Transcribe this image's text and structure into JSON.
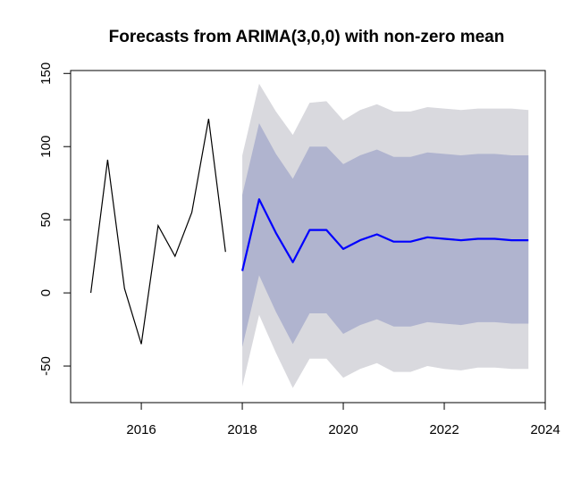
{
  "chart_data": {
    "type": "line",
    "title": "Forecasts from ARIMA(3,0,0) with non-zero mean",
    "xlabel": "",
    "ylabel": "",
    "xlim": [
      2014.6,
      2024.0
    ],
    "ylim": [
      -75,
      152
    ],
    "x_ticks": [
      2016,
      2018,
      2020,
      2022,
      2024
    ],
    "x_tick_labels": [
      "2016",
      "2018",
      "2020",
      "2022",
      "2024"
    ],
    "y_ticks": [
      -50,
      0,
      50,
      100,
      150
    ],
    "y_tick_labels": [
      "-50",
      "0",
      "50",
      "100",
      "150"
    ],
    "grid": false,
    "legend": "none",
    "colors": {
      "history": "#000000",
      "forecast": "#0000ff",
      "band80": "#b0b4cf",
      "band95": "#d9d9de"
    },
    "series": [
      {
        "role": "history",
        "x": [
          2015.0,
          2015.333,
          2015.667,
          2016.0,
          2016.333,
          2016.667,
          2017.0,
          2017.333,
          2017.667
        ],
        "values": [
          0,
          91,
          3,
          -35,
          46,
          25,
          55,
          119,
          28
        ]
      },
      {
        "role": "forecast",
        "x": [
          2018.0,
          2018.333,
          2018.667,
          2019.0,
          2019.333,
          2019.667,
          2020.0,
          2020.333,
          2020.667,
          2021.0,
          2021.333,
          2021.667,
          2022.0,
          2022.333,
          2022.667,
          2023.0,
          2023.333,
          2023.667
        ],
        "values": [
          15,
          64,
          41,
          21,
          43,
          43,
          30,
          36,
          40,
          35,
          35,
          38,
          37,
          36,
          37,
          37,
          36,
          36
        ],
        "lo80": [
          -37,
          12,
          -13,
          -35,
          -14,
          -14,
          -28,
          -22,
          -18,
          -23,
          -23,
          -20,
          -21,
          -22,
          -20,
          -20,
          -21,
          -21
        ],
        "hi80": [
          67,
          116,
          95,
          78,
          100,
          100,
          88,
          94,
          98,
          93,
          93,
          96,
          95,
          94,
          95,
          95,
          94,
          94
        ],
        "lo95": [
          -64,
          -15,
          -41,
          -65,
          -45,
          -45,
          -58,
          -52,
          -48,
          -54,
          -54,
          -50,
          -52,
          -53,
          -51,
          -51,
          -52,
          -52
        ],
        "hi95": [
          94,
          143,
          124,
          108,
          130,
          131,
          118,
          125,
          129,
          124,
          124,
          127,
          126,
          125,
          126,
          126,
          126,
          125
        ]
      }
    ]
  }
}
